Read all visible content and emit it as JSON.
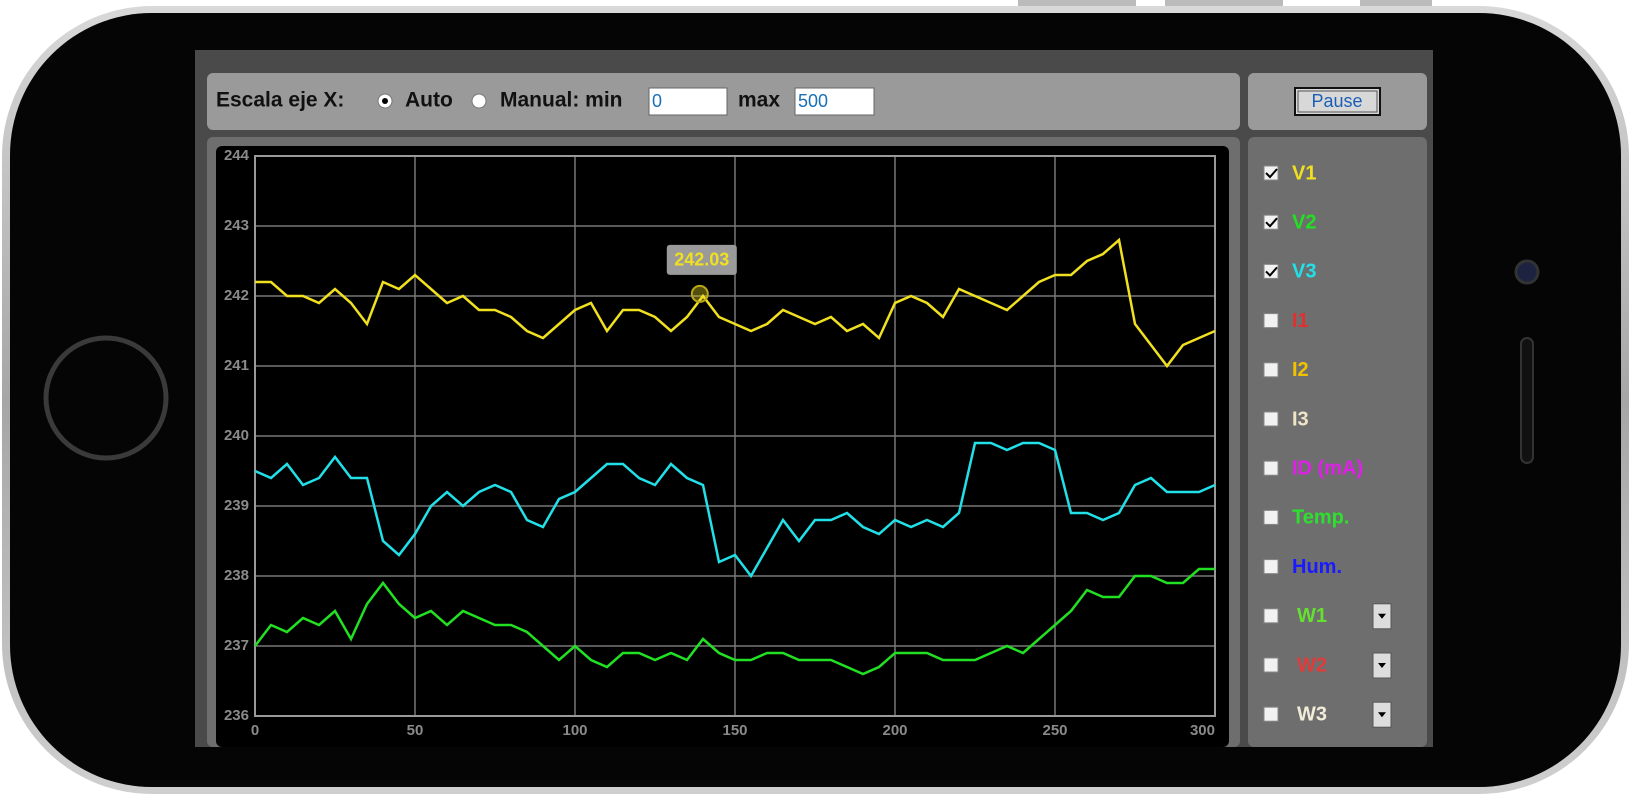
{
  "controls": {
    "x_scale_label": "Escala eje X:",
    "auto_label": "Auto",
    "auto_selected": true,
    "manual_label": "Manual: min",
    "min_value": "0",
    "max_label": "max",
    "max_value": "500",
    "pause_label": "Pause"
  },
  "channels": [
    {
      "name": "I1",
      "color": "#e03030",
      "checked": false,
      "dropdown": false
    },
    {
      "name": "I2",
      "color": "#f2c200",
      "checked": false,
      "dropdown": false
    },
    {
      "name": "I3",
      "color": "#efe3c8",
      "checked": false,
      "dropdown": false
    },
    {
      "name": "ID (mA)",
      "color": "#e020e8",
      "checked": false,
      "dropdown": false
    },
    {
      "name": "Temp.",
      "color": "#2ee02e",
      "checked": false,
      "dropdown": false
    },
    {
      "name": "Hum.",
      "color": "#1a1aff",
      "checked": false,
      "dropdown": false
    },
    {
      "name": "W1",
      "color": "#66e030",
      "checked": false,
      "dropdown": true
    },
    {
      "name": "W2",
      "color": "#e03a3a",
      "checked": false,
      "dropdown": true
    },
    {
      "name": "W3",
      "color": "#f2ecd8",
      "checked": false,
      "dropdown": true
    }
  ],
  "chart_data": {
    "type": "line",
    "x": [
      0,
      5,
      10,
      15,
      20,
      25,
      30,
      35,
      40,
      45,
      50,
      55,
      60,
      65,
      70,
      75,
      80,
      85,
      90,
      95,
      100,
      105,
      110,
      115,
      120,
      125,
      130,
      135,
      140,
      145,
      150,
      155,
      160,
      165,
      170,
      175,
      180,
      185,
      190,
      195,
      200,
      205,
      210,
      215,
      220,
      225,
      230,
      235,
      240,
      245,
      250,
      255,
      260,
      265,
      270,
      275,
      280,
      285,
      290,
      295,
      300
    ],
    "series": [
      {
        "name": "V1",
        "color": "#f0e020",
        "visible": true,
        "values": [
          242.2,
          242.2,
          242.0,
          242.0,
          241.9,
          242.1,
          241.9,
          241.6,
          242.2,
          242.1,
          242.3,
          242.1,
          241.9,
          242.0,
          241.8,
          241.8,
          241.7,
          241.5,
          241.4,
          241.6,
          241.8,
          241.9,
          241.5,
          241.8,
          241.8,
          241.7,
          241.5,
          241.7,
          242.0,
          241.7,
          241.6,
          241.5,
          241.6,
          241.8,
          241.7,
          241.6,
          241.7,
          241.5,
          241.6,
          241.4,
          241.9,
          242.0,
          241.9,
          241.7,
          242.1,
          242.0,
          241.9,
          241.8,
          242.0,
          242.2,
          242.3,
          242.3,
          242.5,
          242.6,
          242.8,
          241.6,
          241.3,
          241.0,
          241.3,
          241.4,
          241.5
        ]
      },
      {
        "name": "V2",
        "color": "#22e022",
        "visible": true,
        "values": [
          237.0,
          237.3,
          237.2,
          237.4,
          237.3,
          237.5,
          237.1,
          237.6,
          237.9,
          237.6,
          237.4,
          237.5,
          237.3,
          237.5,
          237.4,
          237.3,
          237.3,
          237.2,
          237.0,
          236.8,
          237.0,
          236.8,
          236.7,
          236.9,
          236.9,
          236.8,
          236.9,
          236.8,
          237.1,
          236.9,
          236.8,
          236.8,
          236.9,
          236.9,
          236.8,
          236.8,
          236.8,
          236.7,
          236.6,
          236.7,
          236.9,
          236.9,
          236.9,
          236.8,
          236.8,
          236.8,
          236.9,
          237.0,
          236.9,
          237.1,
          237.3,
          237.5,
          237.8,
          237.7,
          237.7,
          238.0,
          238.0,
          237.9,
          237.9,
          238.1,
          238.1
        ]
      },
      {
        "name": "V3",
        "color": "#22e0e8",
        "visible": true,
        "values": [
          239.5,
          239.4,
          239.6,
          239.3,
          239.4,
          239.7,
          239.4,
          239.4,
          238.5,
          238.3,
          238.6,
          239.0,
          239.2,
          239.0,
          239.2,
          239.3,
          239.2,
          238.8,
          238.7,
          239.1,
          239.2,
          239.4,
          239.6,
          239.6,
          239.4,
          239.3,
          239.6,
          239.4,
          239.3,
          238.2,
          238.3,
          238.0,
          238.4,
          238.8,
          238.5,
          238.8,
          238.8,
          238.9,
          238.7,
          238.6,
          238.8,
          238.7,
          238.8,
          238.7,
          238.9,
          239.9,
          239.9,
          239.8,
          239.9,
          239.9,
          239.8,
          238.9,
          238.9,
          238.8,
          238.9,
          239.3,
          239.4,
          239.2,
          239.2,
          239.2,
          239.3
        ]
      }
    ],
    "xlim": [
      0,
      300
    ],
    "xticks": [
      0,
      50,
      100,
      150,
      200,
      250,
      300
    ],
    "ylim": [
      236,
      244
    ],
    "yticks": [
      236,
      237,
      238,
      239,
      240,
      241,
      242,
      243,
      244
    ],
    "grid": true,
    "tooltip": {
      "x": 139,
      "value": 242.03
    }
  }
}
